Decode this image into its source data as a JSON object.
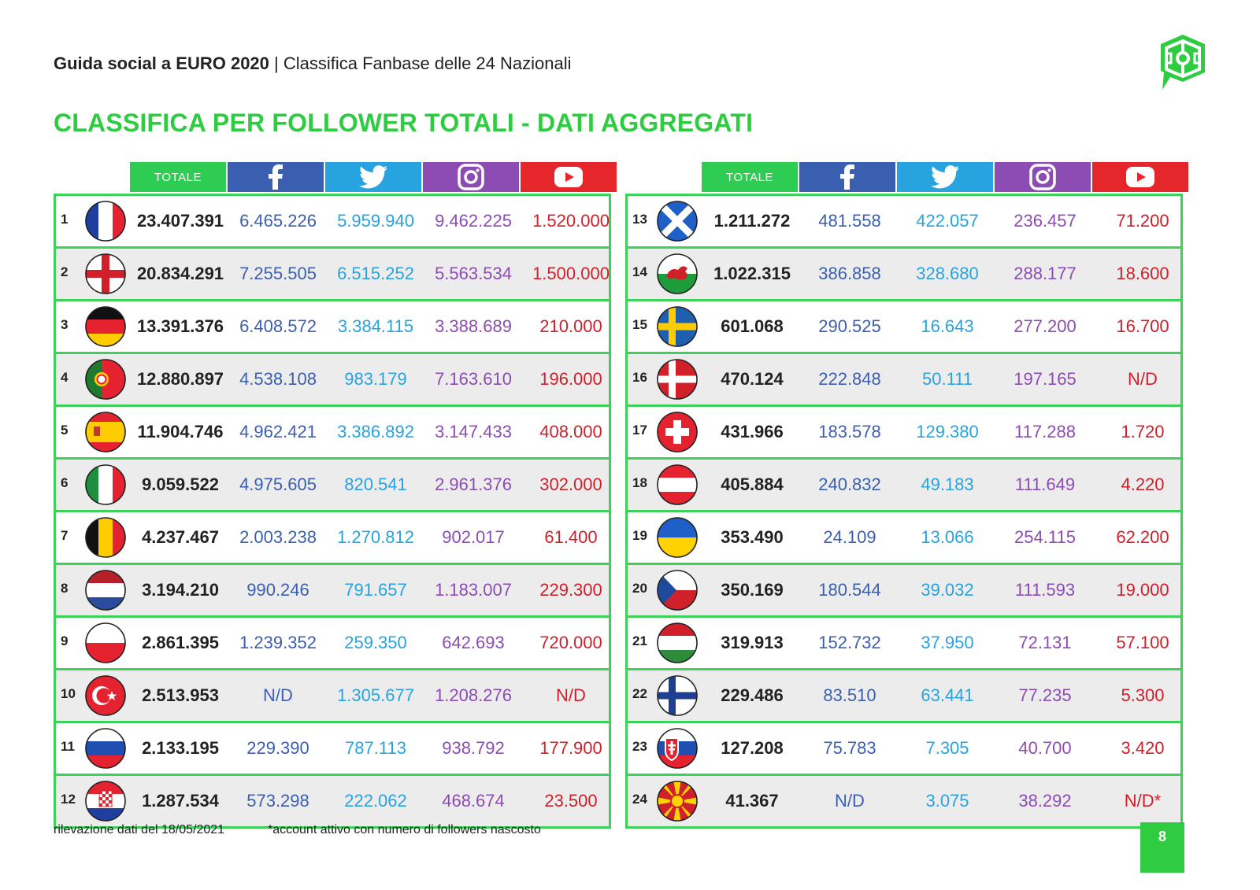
{
  "header": {
    "brand": "Guida social a EURO 2020",
    "separator": " | ",
    "subtitle": "Classifica Fanbase delle 24 Nazionali"
  },
  "title": "CLASSIFICA PER FOLLOWER TOTALI - DATI AGGREGATI",
  "columns": {
    "totale": "TOTALE",
    "facebook_icon": "facebook-icon",
    "twitter_icon": "twitter-icon",
    "instagram_icon": "instagram-icon",
    "youtube_icon": "youtube-icon"
  },
  "colors": {
    "green": "#2ecc40",
    "facebook": "#3b5fb0",
    "twitter": "#27a3e0",
    "instagram": "#8d4cb4",
    "youtube": "#e5262b"
  },
  "left_rows": [
    {
      "rank": "1",
      "flag": "france",
      "totale": "23.407.391",
      "fb": "6.465.226",
      "tw": "5.959.940",
      "ig": "9.462.225",
      "yt": "1.520.000"
    },
    {
      "rank": "2",
      "flag": "england",
      "totale": "20.834.291",
      "fb": "7.255.505",
      "tw": "6.515.252",
      "ig": "5.563.534",
      "yt": "1.500.000"
    },
    {
      "rank": "3",
      "flag": "germany",
      "totale": "13.391.376",
      "fb": "6.408.572",
      "tw": "3.384.115",
      "ig": "3.388.689",
      "yt": "210.000"
    },
    {
      "rank": "4",
      "flag": "portugal",
      "totale": "12.880.897",
      "fb": "4.538.108",
      "tw": "983.179",
      "ig": "7.163.610",
      "yt": "196.000"
    },
    {
      "rank": "5",
      "flag": "spain",
      "totale": "11.904.746",
      "fb": "4.962.421",
      "tw": "3.386.892",
      "ig": "3.147.433",
      "yt": "408.000"
    },
    {
      "rank": "6",
      "flag": "italy",
      "totale": "9.059.522",
      "fb": "4.975.605",
      "tw": "820.541",
      "ig": "2.961.376",
      "yt": "302.000"
    },
    {
      "rank": "7",
      "flag": "belgium",
      "totale": "4.237.467",
      "fb": "2.003.238",
      "tw": "1.270.812",
      "ig": "902.017",
      "yt": "61.400"
    },
    {
      "rank": "8",
      "flag": "netherlands",
      "totale": "3.194.210",
      "fb": "990.246",
      "tw": "791.657",
      "ig": "1.183.007",
      "yt": "229.300"
    },
    {
      "rank": "9",
      "flag": "poland",
      "totale": "2.861.395",
      "fb": "1.239.352",
      "tw": "259.350",
      "ig": "642.693",
      "yt": "720.000"
    },
    {
      "rank": "10",
      "flag": "turkey",
      "totale": "2.513.953",
      "fb": "N/D",
      "tw": "1.305.677",
      "ig": "1.208.276",
      "yt": "N/D"
    },
    {
      "rank": "11",
      "flag": "russia",
      "totale": "2.133.195",
      "fb": "229.390",
      "tw": "787.113",
      "ig": "938.792",
      "yt": "177.900"
    },
    {
      "rank": "12",
      "flag": "croatia",
      "totale": "1.287.534",
      "fb": "573.298",
      "tw": "222.062",
      "ig": "468.674",
      "yt": "23.500"
    }
  ],
  "right_rows": [
    {
      "rank": "13",
      "flag": "scotland",
      "totale": "1.211.272",
      "fb": "481.558",
      "tw": "422.057",
      "ig": "236.457",
      "yt": "71.200"
    },
    {
      "rank": "14",
      "flag": "wales",
      "totale": "1.022.315",
      "fb": "386.858",
      "tw": "328.680",
      "ig": "288.177",
      "yt": "18.600"
    },
    {
      "rank": "15",
      "flag": "sweden",
      "totale": "601.068",
      "fb": "290.525",
      "tw": "16.643",
      "ig": "277.200",
      "yt": "16.700"
    },
    {
      "rank": "16",
      "flag": "denmark",
      "totale": "470.124",
      "fb": "222.848",
      "tw": "50.111",
      "ig": "197.165",
      "yt": "N/D"
    },
    {
      "rank": "17",
      "flag": "switzerland",
      "totale": "431.966",
      "fb": "183.578",
      "tw": "129.380",
      "ig": "117.288",
      "yt": "1.720"
    },
    {
      "rank": "18",
      "flag": "austria",
      "totale": "405.884",
      "fb": "240.832",
      "tw": "49.183",
      "ig": "111.649",
      "yt": "4.220"
    },
    {
      "rank": "19",
      "flag": "ukraine",
      "totale": "353.490",
      "fb": "24.109",
      "tw": "13.066",
      "ig": "254.115",
      "yt": "62.200"
    },
    {
      "rank": "20",
      "flag": "czech",
      "totale": "350.169",
      "fb": "180.544",
      "tw": "39.032",
      "ig": "111.593",
      "yt": "19.000"
    },
    {
      "rank": "21",
      "flag": "hungary",
      "totale": "319.913",
      "fb": "152.732",
      "tw": "37.950",
      "ig": "72.131",
      "yt": "57.100"
    },
    {
      "rank": "22",
      "flag": "finland",
      "totale": "229.486",
      "fb": "83.510",
      "tw": "63.441",
      "ig": "77.235",
      "yt": "5.300"
    },
    {
      "rank": "23",
      "flag": "slovakia",
      "totale": "127.208",
      "fb": "75.783",
      "tw": "7.305",
      "ig": "40.700",
      "yt": "3.420"
    },
    {
      "rank": "24",
      "flag": "north-macedonia",
      "totale": "41.367",
      "fb": "N/D",
      "tw": "3.075",
      "ig": "38.292",
      "yt": "N/D*"
    }
  ],
  "footnotes": {
    "date": "rilevazione dati del 18/05/2021",
    "note": "*account attivo con numero di followers nascosto"
  },
  "page_number": "8"
}
